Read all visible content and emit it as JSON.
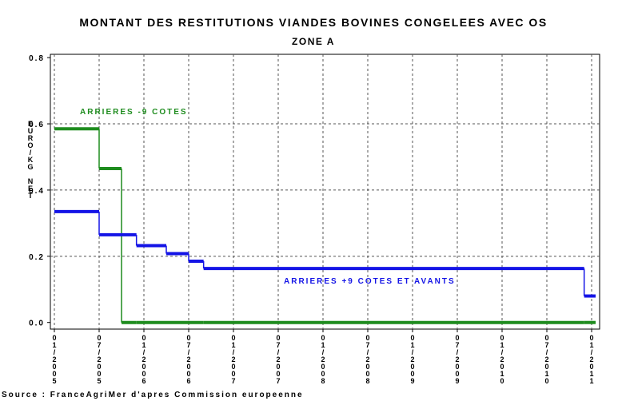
{
  "chart_data": {
    "type": "step",
    "title": "MONTANT DES RESTITUTIONS VIANDES BOVINES CONGELEES AVEC OS",
    "subtitle": "ZONE A",
    "y_label": "EURO/KG NET",
    "source": "Source : FranceAgriMer d'apres Commission europeenne",
    "x": [
      "01/2005",
      "07/2005",
      "10/2005",
      "12/2005",
      "04/2006",
      "07/2006",
      "09/2006",
      "10/2010",
      "12/2010",
      "01/2011"
    ],
    "series": [
      {
        "name": "ARRIERES -9 COTES",
        "color": "#1e8c1e",
        "values": [
          0.585,
          0.465,
          0,
          0,
          0,
          0,
          0,
          0,
          0,
          0
        ]
      },
      {
        "name": "ARRIERES +9 COTES ET AVANTS",
        "color": "#1414e6",
        "values": [
          0.335,
          0.265,
          0.265,
          0.232,
          0.208,
          0.185,
          0.163,
          0.163,
          0.08,
          0.08
        ]
      }
    ],
    "xlim": [
      "01/2005",
      "01/2011"
    ],
    "xticks": [
      "01/2005",
      "07/2005",
      "01/2006",
      "07/2006",
      "01/2007",
      "07/2007",
      "01/2008",
      "07/2008",
      "01/2009",
      "07/2009",
      "01/2010",
      "07/2010",
      "01/2011"
    ],
    "ylim": [
      -0.02,
      0.81
    ],
    "yticks": [
      {
        "value": 0,
        "label": "0.0"
      },
      0.2,
      0.4,
      0.6,
      0.8
    ],
    "grid": true
  }
}
